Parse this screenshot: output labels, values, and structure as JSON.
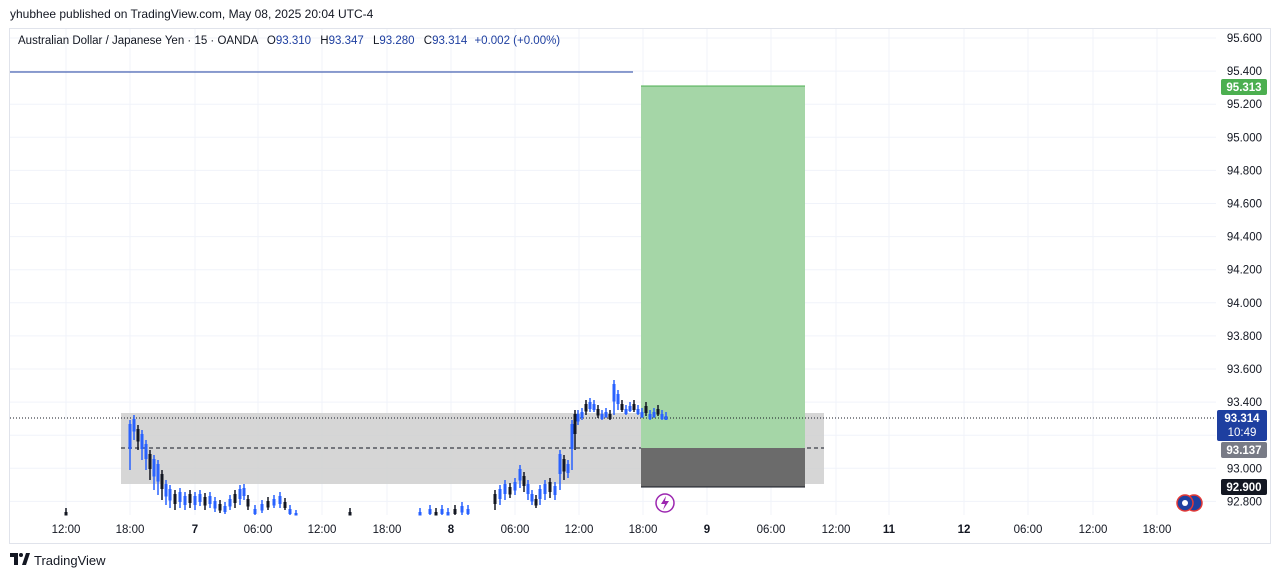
{
  "header": {
    "publisher": "yhubhee published on TradingView.com, May 08, 2025 20:04 UTC-4"
  },
  "legend": {
    "symbol": "Australian Dollar / Japanese Yen · 15 · OANDA",
    "open_label": "O",
    "open": "93.310",
    "high_label": "H",
    "high": "93.347",
    "low_label": "L",
    "low": "93.280",
    "close_label": "C",
    "close": "93.314",
    "change": "+0.002 (+0.00%)"
  },
  "price_axis": {
    "ticks": [
      "95.600",
      "95.400",
      "95.200",
      "95.000",
      "94.800",
      "94.600",
      "94.400",
      "94.200",
      "94.000",
      "93.800",
      "93.600",
      "93.400",
      "93.200",
      "93.000",
      "92.800"
    ]
  },
  "time_axis": {
    "ticks": [
      "12:00",
      "18:00",
      "7",
      "06:00",
      "12:00",
      "18:00",
      "8",
      "06:00",
      "12:00",
      "18:00",
      "9",
      "06:00",
      "12:00",
      "11",
      "12",
      "06:00",
      "12:00",
      "18:00"
    ]
  },
  "price_tags": {
    "target": "95.313",
    "current": "93.314",
    "countdown": "10:49",
    "entry": "93.137",
    "stop": "92.900"
  },
  "colors": {
    "target_tag": "#4caf50",
    "current_tag": "#1e3fa0",
    "entry_tag": "#787b86",
    "stop_tag": "#131722",
    "profit_zone": "#a5d6a7",
    "loss_zone": "#6b6b6b",
    "range_box": "#cfcfcf",
    "candle_up": "#2962ff",
    "candle_down": "#131722"
  },
  "footer": {
    "brand": "TradingView"
  }
}
